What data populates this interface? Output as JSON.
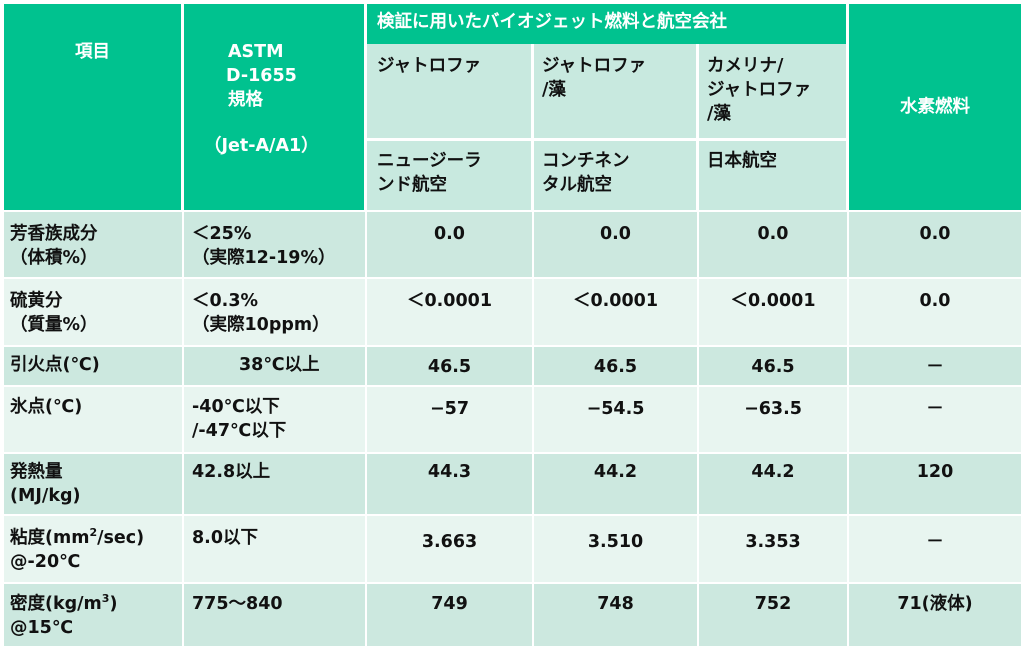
{
  "header": {
    "item": "項目",
    "astm_line1": "ASTM",
    "astm_line2": "D-1655",
    "astm_line3": "規格",
    "astm_note": "（Jet-A/A1）",
    "group_title": "検証に用いたバイオジェット燃料と航空会社",
    "hydrogen": "水素燃料",
    "fuels": [
      {
        "line1": "ジャトロファ",
        "line2": "",
        "line3": ""
      },
      {
        "line1": "ジャトロファ",
        "line2": "/藻",
        "line3": ""
      },
      {
        "line1": "カメリナ/",
        "line2": "ジャトロファ",
        "line3": "/藻"
      }
    ],
    "airlines": [
      {
        "line1": "ニュージーラ",
        "line2": "ンド航空"
      },
      {
        "line1": "コンチネン",
        "line2": "タル航空"
      },
      {
        "line1": "日本航空",
        "line2": ""
      }
    ]
  },
  "rows": [
    {
      "label1": "芳香族成分",
      "label2": "（体積%）",
      "std1": "＜25%",
      "std2": "（実際12-19%）",
      "v1": "0.0",
      "v2": "0.0",
      "v3": "0.0",
      "h": "0.0"
    },
    {
      "label1": "硫黄分",
      "label2": "（質量%）",
      "std1": "＜0.3%",
      "std2": "（実際10ppm）",
      "v1": "＜0.0001",
      "v2": "＜0.0001",
      "v3": "＜0.0001",
      "h": "0.0"
    },
    {
      "label1": "引火点(℃)",
      "label2": "",
      "std1": "38℃以上",
      "std2": "",
      "v1": "46.5",
      "v2": "46.5",
      "v3": "46.5",
      "h": "－"
    },
    {
      "label1": "氷点(℃)",
      "label2": "",
      "std1": "-40℃以下",
      "std2": "/-47℃以下",
      "v1": "−57",
      "v2": "−54.5",
      "v3": "−63.5",
      "h": "－"
    },
    {
      "label1": "発熱量",
      "label2": "(MJ/kg)",
      "std1": "42.8以上",
      "std2": "",
      "v1": "44.3",
      "v2": "44.2",
      "v3": "44.2",
      "h": "120"
    },
    {
      "label1_pre": "粘度(mm",
      "label1_sup": "2",
      "label1_post": "/sec)",
      "label2": "@-20℃",
      "std1": "8.0以下",
      "std2": "",
      "v1": "3.663",
      "v2": "3.510",
      "v3": "3.353",
      "h": "－"
    },
    {
      "label1_pre": "密度(kg/m",
      "label1_sup": "3",
      "label1_post": ")",
      "label2": "@15℃",
      "std1": "775～840",
      "std2": "",
      "v1": "749",
      "v2": "748",
      "v3": "752",
      "h": "71(液体)"
    }
  ],
  "colors": {
    "header_green": "#00c28f",
    "subheader": "#c8e9df",
    "row_dark": "#cce8df",
    "row_light": "#e8f5f0"
  }
}
